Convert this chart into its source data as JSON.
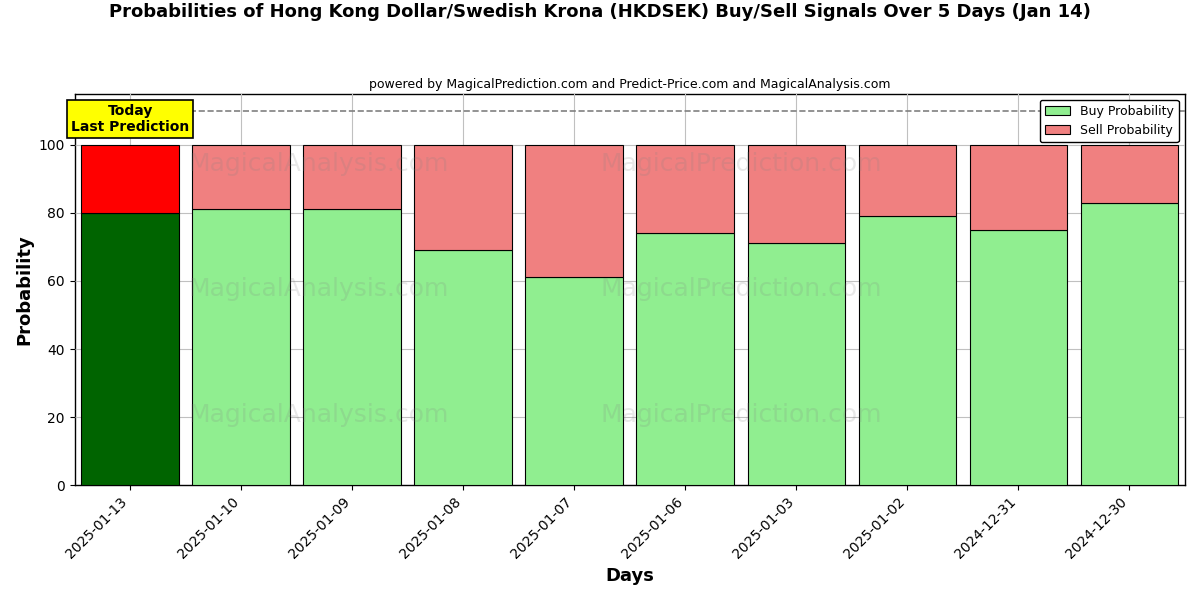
{
  "title": "Probabilities of Hong Kong Dollar/Swedish Krona (HKDSEK) Buy/Sell Signals Over 5 Days (Jan 14)",
  "subtitle": "powered by MagicalPrediction.com and Predict-Price.com and MagicalAnalysis.com",
  "xlabel": "Days",
  "ylabel": "Probability",
  "categories": [
    "2025-01-13",
    "2025-01-10",
    "2025-01-09",
    "2025-01-08",
    "2025-01-07",
    "2025-01-06",
    "2025-01-03",
    "2025-01-02",
    "2024-12-31",
    "2024-12-30"
  ],
  "buy_values": [
    80,
    81,
    81,
    69,
    61,
    74,
    71,
    79,
    75,
    83
  ],
  "sell_values": [
    20,
    19,
    19,
    31,
    39,
    26,
    29,
    21,
    25,
    17
  ],
  "today_color_buy": "#006400",
  "today_color_sell": "#FF0000",
  "other_color_buy": "#90EE90",
  "other_color_sell": "#F08080",
  "today_label_bg": "#FFFF00",
  "today_label_text": "Today\nLast Prediction",
  "legend_buy_label": "Buy Probability",
  "legend_sell_label": "Sell Probability",
  "ylim": [
    0,
    115
  ],
  "yticks": [
    0,
    20,
    40,
    60,
    80,
    100
  ],
  "bar_edgecolor": "#000000",
  "grid_color": "#C0C0C0",
  "dashed_line_y": 110,
  "figsize": [
    12.0,
    6.0
  ],
  "dpi": 100,
  "bar_width": 0.88
}
